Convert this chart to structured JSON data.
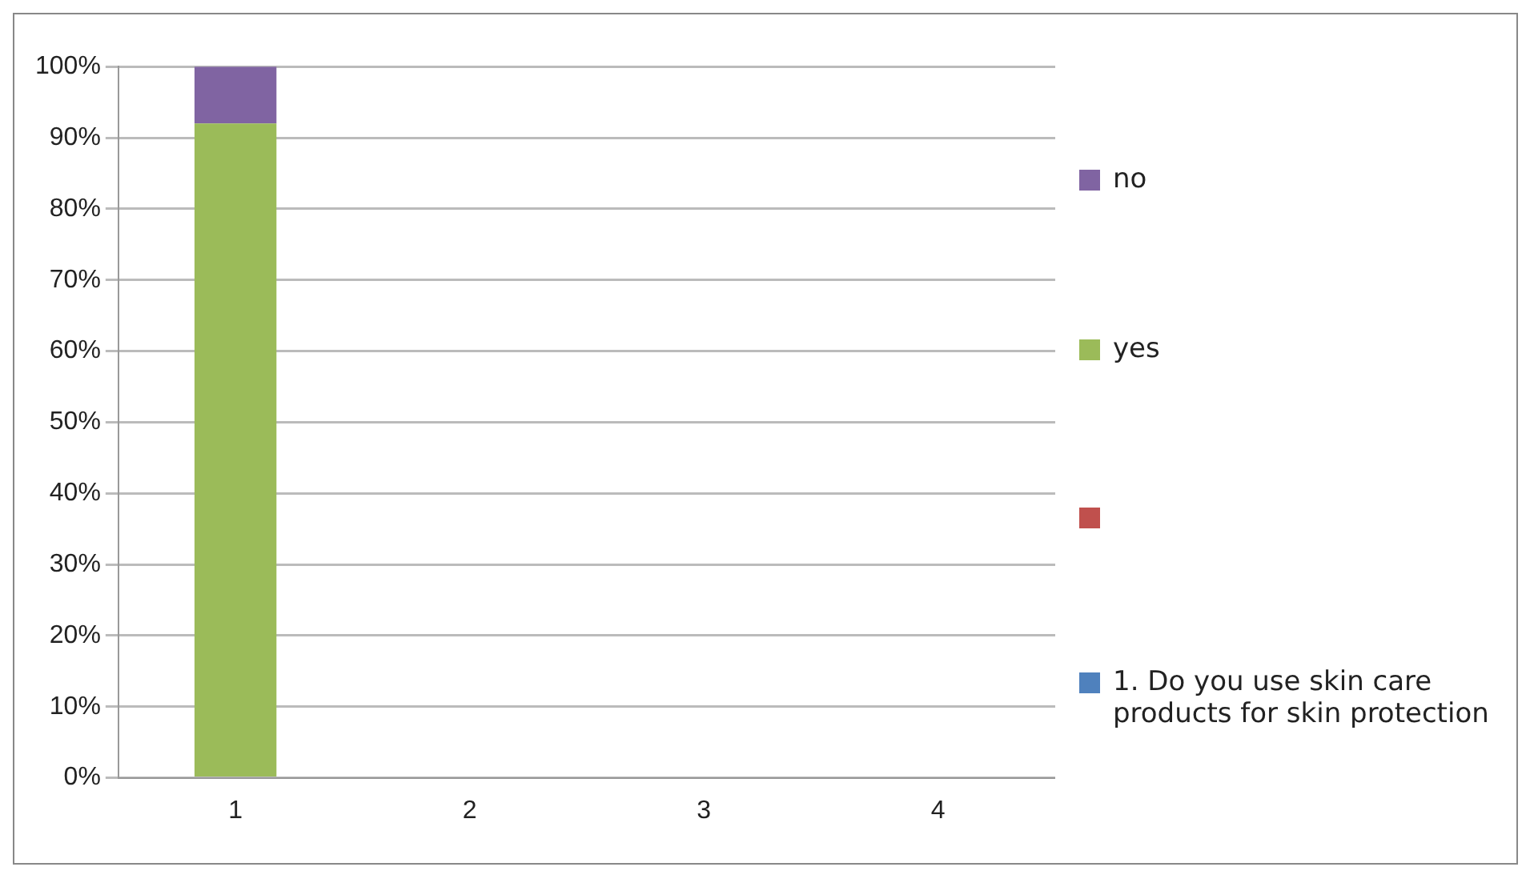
{
  "chart_data": {
    "type": "bar",
    "stacked": true,
    "categories": [
      "1",
      "2",
      "3",
      "4"
    ],
    "series": [
      {
        "name": "1. Do you use skin care products for skin protection",
        "color": "#4f81bd",
        "values": [
          0,
          null,
          null,
          null
        ]
      },
      {
        "color": "#c0504d",
        "values": [
          0,
          null,
          null,
          null
        ]
      },
      {
        "name": "yes",
        "color": "#9bbb59",
        "values": [
          92,
          null,
          null,
          null
        ]
      },
      {
        "name": "no",
        "color": "#8064a2",
        "values": [
          8,
          null,
          null,
          null
        ]
      }
    ],
    "ylim": [
      0,
      100
    ],
    "yticks": [
      {
        "value": 0,
        "label": "0%"
      },
      {
        "value": 10,
        "label": "10%"
      },
      {
        "value": 20,
        "label": "20%"
      },
      {
        "value": 30,
        "label": "30%"
      },
      {
        "value": 40,
        "label": "40%"
      },
      {
        "value": 50,
        "label": "50%"
      },
      {
        "value": 60,
        "label": "60%"
      },
      {
        "value": 70,
        "label": "70%"
      },
      {
        "value": 80,
        "label": "80%"
      },
      {
        "value": 90,
        "label": "90%"
      },
      {
        "value": 100,
        "label": "100%"
      }
    ],
    "grid": "y",
    "legend": "right"
  }
}
